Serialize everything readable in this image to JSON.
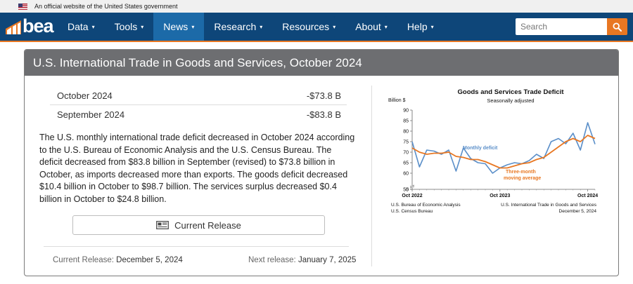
{
  "gov_banner": {
    "text": "An official website of the United States government"
  },
  "logo": {
    "text": "bea"
  },
  "nav": {
    "items": [
      {
        "label": "Data",
        "active": false
      },
      {
        "label": "Tools",
        "active": false
      },
      {
        "label": "News",
        "active": true
      },
      {
        "label": "Research",
        "active": false
      },
      {
        "label": "Resources",
        "active": false
      },
      {
        "label": "About",
        "active": false
      },
      {
        "label": "Help",
        "active": false
      }
    ],
    "caret": "▾",
    "search_placeholder": "Search"
  },
  "colors": {
    "nav_bg": "#0e4679",
    "nav_active": "#1c6aa8",
    "accent": "#e87722",
    "header_gray": "#6d6e71"
  },
  "panel": {
    "title": "U.S. International Trade in Goods and Services, October 2024",
    "stats": [
      {
        "label": "October 2024",
        "value": "-$73.8 B"
      },
      {
        "label": "September 2024",
        "value": "-$83.8 B"
      }
    ],
    "summary": "The U.S. monthly international trade deficit decreased in October 2024 according to the U.S. Bureau of Economic Analysis and the U.S. Census Bureau. The deficit decreased from $83.8 billion in September (revised) to $73.8 billion in October, as imports decreased more than exports. The goods deficit decreased $10.4 billion in October to $98.7 billion. The services surplus decreased $0.4 billion in October to $24.8 billion.",
    "release_button": "Current Release",
    "current_release_label": "Current Release:",
    "current_release_date": "December 5, 2024",
    "next_release_label": "Next release:",
    "next_release_date": "January 7, 2025"
  },
  "chart_data": {
    "type": "line",
    "title": "Goods and Services Trade Deficit",
    "subtitle": "Seasonally adjusted",
    "ylabel": "Billion $",
    "ylim": [
      0,
      90
    ],
    "yticks": [
      0,
      55,
      60,
      65,
      70,
      75,
      80,
      85,
      90
    ],
    "x_tick_labels": [
      "Oct 2022",
      "Oct 2023",
      "Oct 2024"
    ],
    "x_tick_index": [
      0,
      12,
      24
    ],
    "grid": false,
    "series": [
      {
        "name": "Monthly deficit",
        "color": "#5b8fc9",
        "values": [
          75,
          63,
          71,
          70.5,
          69,
          71,
          61,
          72,
          67,
          65,
          64.5,
          60,
          62.5,
          64,
          65,
          64.5,
          66,
          69,
          67,
          75,
          76.5,
          74,
          79,
          71,
          84,
          73.8
        ]
      },
      {
        "name": "Three-month moving average",
        "color": "#e87722",
        "values": [
          72,
          70,
          69,
          69.5,
          69.5,
          70,
          68,
          67.5,
          66.5,
          66.5,
          65.5,
          64,
          62.5,
          62.5,
          63.5,
          64.5,
          65,
          66.5,
          67.5,
          70,
          72.5,
          75,
          76.5,
          75,
          78,
          76.5
        ]
      }
    ],
    "annotations": [
      {
        "text": "Monthly deficit",
        "color": "#5b8fc9"
      },
      {
        "text": "Three-month",
        "color": "#e87722"
      },
      {
        "text": "moving average",
        "color": "#e87722"
      }
    ],
    "source_left": [
      "U.S. Bureau of Economic Analysis",
      "U.S. Census Bureau"
    ],
    "source_right": [
      "U.S. International Trade in Goods and Services",
      "December 5, 2024"
    ]
  }
}
